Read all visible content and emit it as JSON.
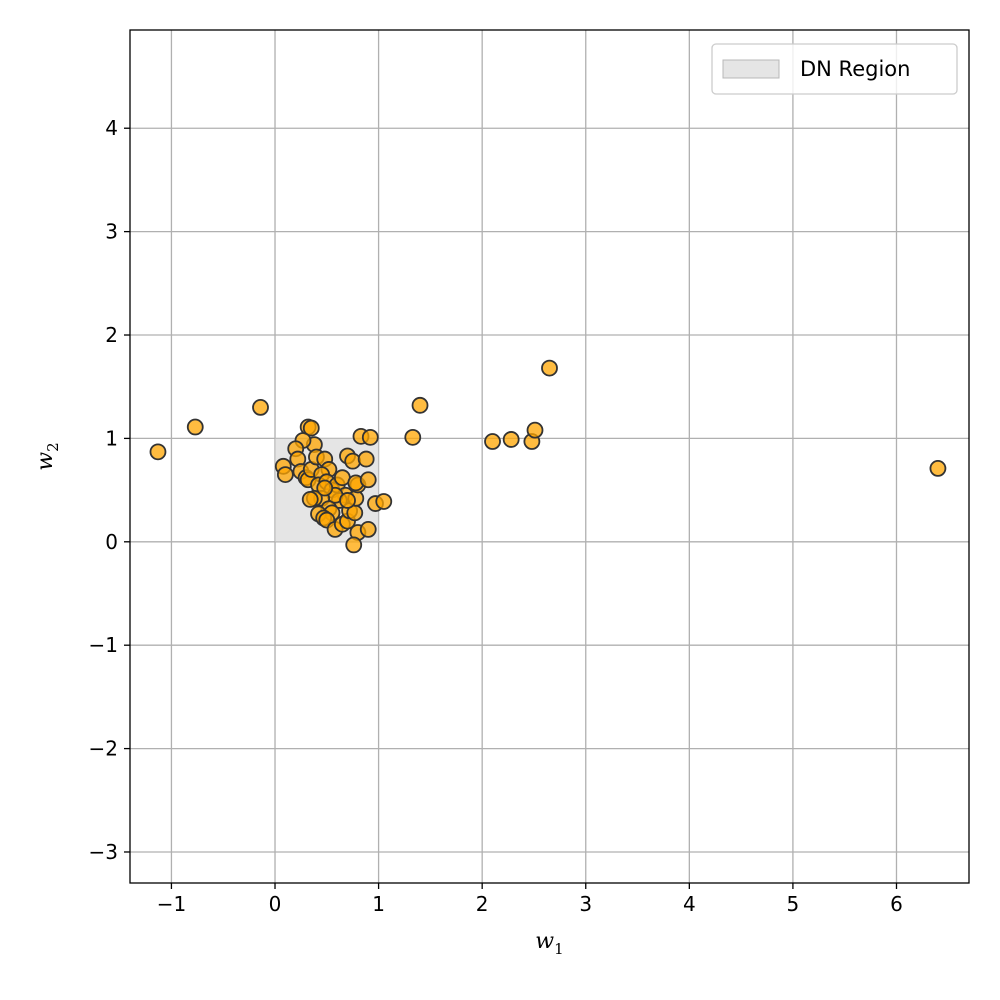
{
  "chart_data": {
    "type": "scatter",
    "title": "",
    "xlabel": "w",
    "xlabel_sub": "1",
    "ylabel": "w",
    "ylabel_sub": "2",
    "xlim": [
      -1.4,
      6.7
    ],
    "ylim": [
      -3.3,
      4.95
    ],
    "xticks": [
      -1,
      0,
      1,
      2,
      3,
      4,
      5,
      6
    ],
    "yticks": [
      -3,
      -2,
      -1,
      0,
      1,
      2,
      3,
      4
    ],
    "grid": true,
    "legend_position": "top-right",
    "region": {
      "label": "DN Region",
      "x": [
        0,
        1
      ],
      "y": [
        0,
        1
      ],
      "color": "#d3d3d3"
    },
    "point_color": "#ffa500",
    "point_edge_color": "#333333",
    "series": [
      {
        "name": "",
        "points": [
          [
            -1.13,
            0.87
          ],
          [
            -0.77,
            1.11
          ],
          [
            -0.14,
            1.3
          ],
          [
            0.32,
            1.11
          ],
          [
            0.35,
            1.1
          ],
          [
            0.38,
            0.94
          ],
          [
            0.27,
            0.98
          ],
          [
            0.2,
            0.9
          ],
          [
            0.22,
            0.8
          ],
          [
            0.08,
            0.73
          ],
          [
            0.1,
            0.65
          ],
          [
            0.25,
            0.68
          ],
          [
            0.3,
            0.62
          ],
          [
            0.32,
            0.6
          ],
          [
            0.35,
            0.7
          ],
          [
            0.4,
            0.82
          ],
          [
            0.48,
            0.8
          ],
          [
            0.52,
            0.7
          ],
          [
            0.45,
            0.65
          ],
          [
            0.42,
            0.55
          ],
          [
            0.5,
            0.58
          ],
          [
            0.55,
            0.5
          ],
          [
            0.6,
            0.55
          ],
          [
            0.65,
            0.62
          ],
          [
            0.7,
            0.83
          ],
          [
            0.75,
            0.78
          ],
          [
            0.68,
            0.45
          ],
          [
            0.62,
            0.4
          ],
          [
            0.58,
            0.45
          ],
          [
            0.45,
            0.42
          ],
          [
            0.38,
            0.42
          ],
          [
            0.34,
            0.41
          ],
          [
            0.48,
            0.52
          ],
          [
            0.52,
            0.32
          ],
          [
            0.55,
            0.28
          ],
          [
            0.42,
            0.27
          ],
          [
            0.47,
            0.23
          ],
          [
            0.5,
            0.21
          ],
          [
            0.58,
            0.12
          ],
          [
            0.65,
            0.17
          ],
          [
            0.7,
            0.2
          ],
          [
            0.72,
            0.3
          ],
          [
            0.77,
            0.28
          ],
          [
            0.78,
            0.42
          ],
          [
            0.8,
            0.55
          ],
          [
            0.78,
            0.57
          ],
          [
            0.7,
            0.4
          ],
          [
            0.8,
            0.09
          ],
          [
            0.76,
            -0.03
          ],
          [
            0.9,
            0.12
          ],
          [
            0.9,
            0.6
          ],
          [
            0.88,
            0.8
          ],
          [
            0.83,
            1.02
          ],
          [
            0.92,
            1.01
          ],
          [
            0.97,
            0.37
          ],
          [
            1.05,
            0.39
          ],
          [
            1.33,
            1.01
          ],
          [
            1.4,
            1.32
          ],
          [
            2.1,
            0.97
          ],
          [
            2.28,
            0.99
          ],
          [
            2.48,
            0.97
          ],
          [
            2.51,
            1.08
          ],
          [
            2.65,
            1.68
          ],
          [
            6.4,
            0.71
          ]
        ]
      }
    ]
  }
}
